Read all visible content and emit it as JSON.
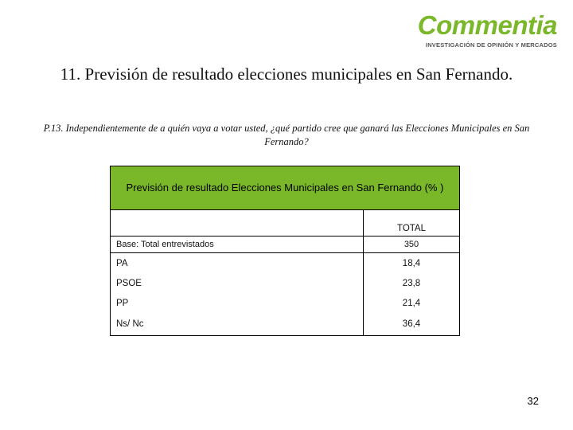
{
  "logo": {
    "brand": "Commentia",
    "tagline": "INVESTIGACIÓN DE OPINIÓN Y MERCADOS",
    "brand_color": "#7ab829"
  },
  "title": "11. Previsión de resultado elecciones municipales en San Fernando.",
  "question": "P.13. Independientemente de a quién vaya a votar usted, ¿qué partido cree que ganará las Elecciones Municipales en San Fernando?",
  "table": {
    "header": "Previsión de resultado Elecciones Municipales en San Fernando (% )",
    "header_color": "#7ab829",
    "column_label": "TOTAL",
    "base": {
      "label": "Base: Total entrevistados",
      "value": "350"
    },
    "rows": [
      {
        "label": "PA",
        "value": "18,4"
      },
      {
        "label": "PSOE",
        "value": "23,8"
      },
      {
        "label": "PP",
        "value": "21,4"
      },
      {
        "label": "Ns/ Nc",
        "value": "36,4"
      }
    ]
  },
  "page_number": "32"
}
